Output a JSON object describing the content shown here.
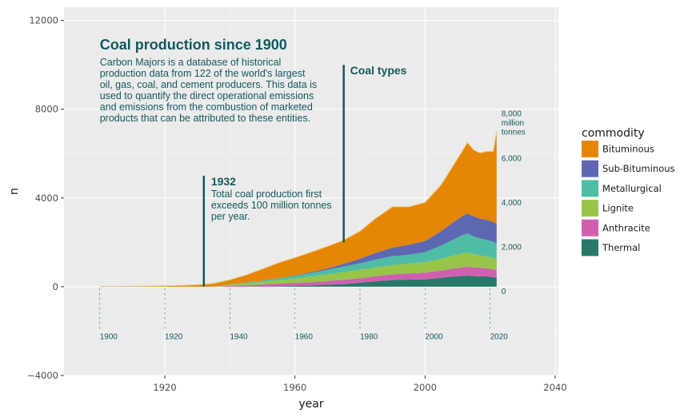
{
  "chart_data": {
    "type": "area",
    "title": "Coal production since 1900",
    "subtitle_lines": [
      "Carbon Majors is a database of historical",
      "production data from 122 of the world's largest",
      "oil, gas, coal, and cement producers. This data is",
      "used to quantify the direct operational emissions",
      "and emissions from the combustion of marketed",
      "products that can be attributed to these entities."
    ],
    "xlabel": "year",
    "ylabel": "n",
    "xlim": [
      1889,
      2041
    ],
    "ylim": [
      -4000,
      12600
    ],
    "x_ticks": [
      "1920",
      "1960",
      "2000",
      "2040"
    ],
    "x_tick_values": [
      1920,
      1960,
      2000,
      2040
    ],
    "y_ticks": [
      "−4000",
      "0",
      "4000",
      "8000",
      "12000"
    ],
    "y_tick_values": [
      -4000,
      0,
      4000,
      8000,
      12000
    ],
    "grid": true,
    "legend_title": "commodity",
    "legend_position": "right",
    "x": [
      1900,
      1910,
      1920,
      1925,
      1930,
      1935,
      1940,
      1945,
      1950,
      1955,
      1960,
      1965,
      1970,
      1975,
      1980,
      1985,
      1990,
      1995,
      2000,
      2005,
      2008,
      2011,
      2013,
      2015,
      2017,
      2019,
      2021,
      2022
    ],
    "series": [
      {
        "name": "Thermal",
        "color": "#277868",
        "values": [
          0,
          0,
          0,
          0,
          0,
          0,
          0,
          0,
          0,
          20,
          40,
          60,
          90,
          120,
          180,
          250,
          300,
          320,
          330,
          400,
          450,
          480,
          500,
          480,
          470,
          460,
          430,
          400
        ]
      },
      {
        "name": "Anthracite",
        "color": "#cf60b0",
        "values": [
          0,
          0,
          0,
          0,
          0,
          0,
          40,
          60,
          100,
          120,
          130,
          150,
          170,
          190,
          200,
          230,
          260,
          280,
          300,
          330,
          350,
          380,
          400,
          390,
          380,
          370,
          350,
          340
        ]
      },
      {
        "name": "Lignite",
        "color": "#96c54a",
        "values": [
          0,
          0,
          0,
          0,
          0,
          0,
          50,
          80,
          120,
          160,
          200,
          250,
          300,
          350,
          380,
          400,
          420,
          440,
          480,
          530,
          580,
          630,
          650,
          600,
          560,
          540,
          520,
          500
        ]
      },
      {
        "name": "Metallurgical",
        "color": "#4fbca6",
        "values": [
          0,
          0,
          0,
          0,
          0,
          0,
          20,
          40,
          60,
          80,
          120,
          160,
          200,
          250,
          300,
          350,
          400,
          400,
          450,
          600,
          700,
          800,
          850,
          800,
          760,
          740,
          720,
          700
        ]
      },
      {
        "name": "Sub-Bituminous",
        "color": "#5e67b2",
        "values": [
          0,
          0,
          0,
          0,
          0,
          0,
          0,
          0,
          0,
          0,
          20,
          40,
          60,
          120,
          200,
          300,
          380,
          450,
          500,
          650,
          750,
          850,
          900,
          900,
          900,
          900,
          900,
          900
        ]
      },
      {
        "name": "Bituminous",
        "color": "#e58607",
        "values": [
          10,
          20,
          40,
          60,
          90,
          150,
          200,
          350,
          520,
          700,
          800,
          900,
          1000,
          1070,
          1240,
          1570,
          1840,
          1710,
          1740,
          2090,
          2470,
          2860,
          3200,
          2990,
          2960,
          3090,
          3180,
          4160
        ]
      }
    ],
    "legend_order": [
      "Bituminous",
      "Sub-Bituminous",
      "Metallurgical",
      "Lignite",
      "Anthracite",
      "Thermal"
    ],
    "annotation_1932": {
      "x": 1932,
      "y_range": [
        0,
        5000
      ],
      "title": "1932",
      "text_lines": [
        "Total coal production first",
        "exceeds 100 million tonnes",
        "per year."
      ]
    },
    "annotation_coal_types": {
      "x": 1975,
      "y_range": [
        2000,
        10000
      ],
      "title": "Coal types"
    },
    "year_guides": {
      "years": [
        "1900",
        "1920",
        "1940",
        "1960",
        "1980",
        "2000",
        "2020"
      ],
      "year_values": [
        1900,
        1920,
        1940,
        1960,
        1980,
        2000,
        2020
      ],
      "y_range": [
        -1900,
        0
      ]
    },
    "right_scale": {
      "labels": [
        "0",
        "2,000",
        "4,000",
        "6,000"
      ],
      "values": [
        0,
        2000,
        4000,
        6000
      ],
      "top_label_lines": [
        "8,000",
        "million",
        "tonnes"
      ],
      "top_value": 8000
    }
  }
}
